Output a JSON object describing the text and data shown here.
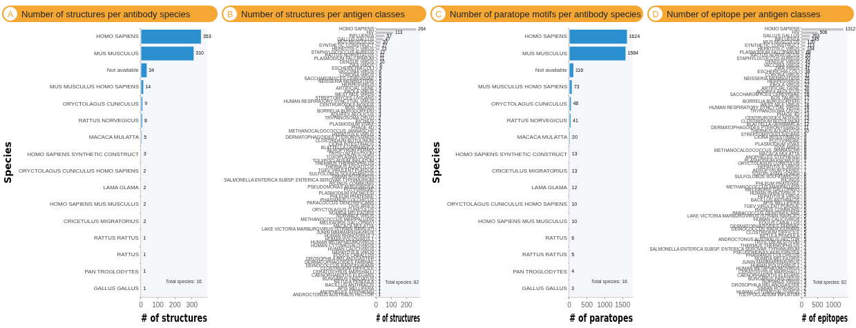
{
  "chart_data": [
    {
      "type": "bar",
      "orientation": "horizontal",
      "title": "Number of structures per antibody species",
      "xlabel": "# of structures",
      "ylabel": "Species",
      "categories": [
        "HOMO SAPIENS",
        "MUS MUSCULUS",
        "Not available",
        "MUS MUSCULUS HOMO SAPIENS",
        "ORYCTOLAGUS CUNICULUS",
        "RATTUS NORVEGICUS",
        "MACACA MULATTA",
        "HOMO SAPIENS SYNTHETIC CONSTRUCT",
        "ORYCTOLAGUS CUNICULUS HOMO SAPIENS",
        "LAMA GLAMA",
        "HOMO SAPIENS MUS MUSCULUS",
        "CRICETULUS MIGRATORIUS",
        "RATTUS RATTUS",
        "RATTUS",
        "PAN TROGLODYTES",
        "GALLUS GALLUS"
      ],
      "values": [
        353,
        310,
        34,
        14,
        9,
        8,
        5,
        3,
        2,
        2,
        2,
        2,
        1,
        1,
        1,
        1
      ],
      "colors": [
        "#2a8fcf",
        "#2a8fcf",
        "#2b90cf",
        "#3194d1",
        "#4a9fd5",
        "#4fa2d6",
        "#6fb2dc",
        "#a5cde8",
        "#bcd9ed",
        "#bcd9ed",
        "#bcd9ed",
        "#bcd9ed",
        "#d9e9f4",
        "#d9e9f4",
        "#d9e9f4",
        "#d9e9f4"
      ],
      "xlim": [
        0,
        390
      ],
      "xticks": [
        0,
        100,
        200,
        300
      ],
      "data_labels": true,
      "annotations": [
        "A",
        "Total species: 16"
      ]
    },
    {
      "type": "bar",
      "orientation": "horizontal",
      "title": "Number of structures per antigen classes",
      "xlabel": "# of structures",
      "categories": [
        "HOMO SAPIENS",
        "HIV",
        "INFLUENZA",
        "GALLUS GALLUS",
        "MUS MUSCULUS",
        "SYNTHETIC CONSTRUCT",
        "HEPATITIS C VIRUS",
        "STAPHYLOCOCCUS AUREUS",
        "RATTUS NORVEGICUS",
        "PLASMODIUM FALCIPARUM",
        "DENGUE VIRUS",
        "ZIKA VIRUS",
        "ESCHERICHIA COLI",
        "VACCINIA VIRUS",
        "CORONA VIRUS",
        "SACCHAROMYCES CEREVISIAE",
        "NEISSERIA MENINGITIDIS",
        "HERPESVIRUS",
        "ARTIFICIAL GENE",
        "EBOLA VIRUS",
        "WEST NILE VIRUS",
        "STREPTOMYCES LIVIDANS",
        "HUMAN RESPIRATORY SYNCYTIAL VIRUS",
        "CENTRUROIDES NOXIUS",
        "BOS TAURUS",
        "BORRELIA BURGDORFERI",
        "AQUIFEX AEOLICUS",
        "TRYPANOSOMA CRUZI",
        "RICINUS",
        "PLASMODIUM VIVAX",
        "PHAGE 4D",
        "METHANOCALDOCOCCUS JANNASCHII",
        "HEPATITIS E VIRUS",
        "DERMATOPHAGOIDES PTERONYSSINUS",
        "CLOSTRIDIUM BOTULINUM",
        "CIONA INTESTINALIS",
        "BLATTELLA GERMANICA",
        "AEROPYRUM PERNIX",
        "TRITICUM AESTIVUM",
        "TOXOPLASMA GONDII",
        "TOLYPOCLADIUM INFLATUM",
        "THERMUS THERMOPHILUS",
        "THERMUS AQUATICUS",
        "TGEV VIRULENT PURDUE",
        "SULFOLOBUS SOLFATARICUS",
        "SIMIAN ROTAVIRUS",
        "SALMONELLA ENTERICA SUBSP. ENTERICA SEROVAR TYPHIMURIUM",
        "RICINUS COMMUNIS",
        "PSEUDOMONAS AERUGINOSA",
        "POTYVIRIDAE",
        "PLASMODIUM KNOWLESI",
        "PHLEUM PRATENSE",
        "PHASIANUS COLCHICUS",
        "PARACOCCUS DENITRIFICANS",
        "OVIS ARIES",
        "ORYCTOLAGUS CUNICULUS",
        "NUMIDA MELEAGRIS",
        "NORWALK VIRUS",
        "METHANOCOCCUS MARIPALUDIS",
        "MELEAGRIS GALLOPAVO",
        "MACACA MULATTA",
        "LAKE VICTORIA MARBURGVIRUS (STRAIN RAVN-87)",
        "JUNIN MAMMARENAVIRUS",
        "HUMAN RHINOVIRUS 2",
        "HUMAN POLIOVIRUS 1",
        "HUMAN METAPNEUMOVIRUS",
        "HUMAN CYTOMEGALOVIRUS",
        "HUMAN CALICIVIRUS",
        "HEPATITIS B VIRUS",
        "EQUUS CABALLUS",
        "DROSOPHILA MELANOGASTER",
        "DERMATOPHAGOIDES FARINAE",
        "DEINOCOCCUS RADIODURANS",
        "CLOSTRIDIUM DIFFICILE",
        "CERATOGYRUS MARSHALLI",
        "CAENORHABDITIS ELEGANS",
        "BUNGARUS FASCIATUS",
        "BETULA PENDULA",
        "BACILLUS ANTHRACIS",
        "APIS MELLIFERA",
        "ANOPHELES STEPHENSI",
        "ANDROCTONUS AUSTRALIS HECTOR"
      ],
      "values": [
        264,
        113,
        57,
        47,
        30,
        27,
        23,
        12,
        11,
        11,
        10,
        9,
        9,
        6,
        6,
        5,
        5,
        5,
        5,
        4,
        3,
        3,
        3,
        3,
        3,
        3,
        3,
        2,
        2,
        2,
        2,
        2,
        2,
        2,
        2,
        2,
        2,
        2,
        1,
        1,
        1,
        1,
        1,
        1,
        1,
        1,
        1,
        1,
        1,
        1,
        1,
        1,
        1,
        1,
        1,
        1,
        1,
        1,
        1,
        1,
        1,
        1,
        1,
        1,
        1,
        1,
        1,
        1,
        1,
        1,
        1,
        1,
        1,
        1,
        1,
        1,
        1,
        1,
        1,
        1,
        1,
        1
      ],
      "color": "#c2c2c2",
      "xlim": [
        0,
        290
      ],
      "xticks": [
        0,
        100,
        200
      ],
      "data_labels": true,
      "annotations": [
        "B",
        "Total species: 82"
      ]
    },
    {
      "type": "bar",
      "orientation": "horizontal",
      "title": "Number of paratope motifs per antibody species",
      "xlabel": "# of paratopes",
      "ylabel": "Species",
      "categories": [
        "HOMO SAPIENS",
        "MUS MUSCULUS",
        "Not available",
        "MUS MUSCULUS HOMO SAPIENS",
        "ORYCTOLAGUS CUNICULUS",
        "RATTUS NORVEGICUS",
        "MACACA MULATTA",
        "HOMO SAPIENS SYNTHETIC CONSTRUCT",
        "CRICETULUS MIGRATORIUS",
        "LAMA GLAMA",
        "ORYCTOLAGUS CUNICULUS HOMO SAPIENS",
        "HOMO SAPIENS MUS MUSCULUS",
        "RATTUS",
        "RATTUS RATTUS",
        "PAN TROGLODYTES",
        "GALLUS GALLUS"
      ],
      "values": [
        1624,
        1584,
        116,
        73,
        48,
        41,
        20,
        13,
        13,
        12,
        10,
        10,
        6,
        5,
        4,
        3
      ],
      "colors": [
        "#2a8fcf",
        "#2a8fcf",
        "#3093d1",
        "#3a98d2",
        "#4a9fd5",
        "#4fa2d6",
        "#6fb2dc",
        "#a5cde8",
        "#a5cde8",
        "#aed2ea",
        "#bcd9ed",
        "#bcd9ed",
        "#cfe3f1",
        "#d4e6f2",
        "#d9e9f4",
        "#deecf5"
      ],
      "xlim": [
        0,
        1790
      ],
      "xticks": [
        0,
        500,
        1000,
        1500
      ],
      "data_labels": true,
      "annotations": [
        "C",
        "Total species: 16"
      ]
    },
    {
      "type": "bar",
      "orientation": "horizontal",
      "title": "Number of epitope per antigen classes",
      "xlabel": "# of epitopes",
      "categories": [
        "HOMO SAPIENS",
        "HIV",
        "GALLUS GALLUS",
        "INFLUENZA",
        "MUS MUSCULUS",
        "SYNTHETIC CONSTRUCT",
        "HEPATITIS C VIRUS",
        "PLASMODIUM FALCIPARUM",
        "RATTUS NORVEGICUS",
        "STAPHYLOCOCCUS AUREUS",
        "DENGUE VIRUS",
        "VACCINIA VIRUS",
        "ZIKA VIRUS",
        "ESCHERICHIA COLI",
        "CORONA VIRUS",
        "NEISSERIA MENINGITIDIS",
        "HERPESVIRUS",
        "EBOLA VIRUS",
        "ARTIFICIAL GENE",
        "AQUIFEX AEOLICUS",
        "SACCHAROMYCES CEREVISIAE",
        "BOS TAURUS",
        "BORRELIA BURGDORFERI",
        "WEST NILE VIRUS",
        "HUMAN RESPIRATORY SYNCYTIAL VIRUS",
        "TRYPANOSOMA CRUZI",
        "PHAGE 4D",
        "CENTRUROIDES NOXIUS",
        "CLOSTRIDIUM BOTULINUM",
        "BLATTELLA GERMANICA",
        "DERMATOPHAGOIDES PTERONYSSINUS",
        "THERMUS AQUATICUS",
        "STREPTOMYCES LIVIDANS",
        "CIONA INTESTINALIS",
        "POTYVIRIDAE",
        "PLASMODIUM VIVAX",
        "OVIS ARIES",
        "METHANOCALDOCOCCUS JANNASCHII",
        "MACACA MULATTA",
        "ANOPHELES STEPHENSI",
        "PLASMODIUM KNOWLESI",
        "ORYCTOLAGUS CUNICULUS",
        "HEPATITIS E VIRUS",
        "AEROPYRUM PERNIX",
        "TOXOPLASMA GONDII",
        "SULFOLOBUS SOLFATARICUS",
        "RICINUS",
        "PHLEUM PRATENSE",
        "METHANOCOCCUS MARIPALUDIS",
        "MELEAGRIS GALLOPAVO",
        "HUMAN RHINOVIRUS 2",
        "HEPATITIS B VIRUS",
        "BACILLUS ANTHRACIS",
        "APIS MELLIFERA",
        "TGEV VIRULENT PURDUE",
        "RICINUS COMMUNIS",
        "PARACOCCUS DENITRIFICANS",
        "LAKE VICTORIA MARBURGVIRUS (STRAIN RAVN-87)",
        "HUMAN CALICIVIRUS",
        "EQUUS CABALLUS",
        "DERMATOPHAGOIDES FARINAE",
        "DEINOCOCCUS RADIODURANS",
        "CLOSTRIDIUM DIFFICILE",
        "BETULA PENDULA",
        "ANDROCTONUS AUSTRALIS HECTOR",
        "TRITICUM AESTIVUM",
        "THERMUS THERMOPHILUS",
        "SALMONELLA ENTERICA SUBSP. ENTERICA SEROVAR TYPHIMURIUM",
        "PSEUDOMONAS AERUGINOSA",
        "PHASIANUS COLCHICUS",
        "NUMIDA MELEAGRIS",
        "JUNIN MAMMARENAVIRUS",
        "HUMAN POLIOVIRUS 1",
        "HUMAN METAPNEUMOVIRUS",
        "CERATOGYRUS MARSHALLI",
        "CAENORHABDITIS ELEGANS",
        "BUNGARUS FASCIATUS",
        "NORWALK VIRUS",
        "DROSOPHILA MELANOGASTER",
        "SIMIAN ROTAVIRUS",
        "HUMAN CYTOMEGALOVIRUS",
        "TOLYPOCLADIUM INFLATUM"
      ],
      "values": [
        1312,
        506,
        263,
        245,
        120,
        113,
        104,
        68,
        55,
        50,
        45,
        42,
        41,
        38,
        31,
        25,
        23,
        22,
        20,
        20,
        18,
        17,
        17,
        16,
        16,
        14,
        13,
        13,
        12,
        12,
        11,
        10,
        9,
        9,
        8,
        8,
        8,
        8,
        8,
        8,
        7,
        7,
        7,
        7,
        6,
        6,
        6,
        6,
        6,
        6,
        6,
        6,
        6,
        6,
        5,
        5,
        5,
        5,
        5,
        5,
        5,
        5,
        5,
        5,
        5,
        4,
        4,
        4,
        4,
        4,
        4,
        4,
        4,
        4,
        4,
        4,
        4,
        3,
        3,
        2,
        2,
        1
      ],
      "color": "#c2c2c2",
      "xlim": [
        0,
        1450
      ],
      "xticks": [
        0,
        500,
        1000
      ],
      "data_labels": true,
      "annotations": [
        "D",
        "Total species: 82"
      ]
    }
  ]
}
